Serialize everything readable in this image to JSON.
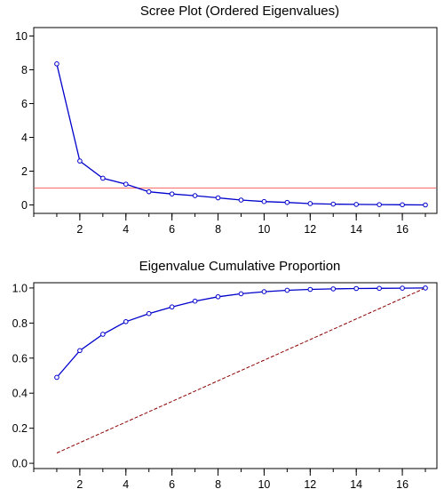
{
  "chart_data": [
    {
      "type": "line",
      "title": "Scree Plot (Ordered Eigenvalues)",
      "xlabel": "",
      "ylabel": "",
      "xlim": [
        0,
        17.5
      ],
      "ylim": [
        -0.5,
        10.5
      ],
      "x_ticks": [
        2,
        4,
        6,
        8,
        10,
        12,
        14,
        16
      ],
      "y_ticks": [
        0,
        2,
        4,
        6,
        8,
        10
      ],
      "y_tick_labels": [
        "0",
        "2",
        "4",
        "6",
        "8",
        "10"
      ],
      "x": [
        1,
        2,
        3,
        4,
        5,
        6,
        7,
        8,
        9,
        10,
        11,
        12,
        13,
        14,
        15,
        16,
        17
      ],
      "series": [
        {
          "values": [
            8.35,
            2.6,
            1.58,
            1.23,
            0.78,
            0.65,
            0.55,
            0.42,
            0.29,
            0.2,
            0.15,
            0.08,
            0.05,
            0.03,
            0.02,
            0.01,
            0.0
          ],
          "color": "#0000cc"
        }
      ],
      "reference_line": {
        "y": 1.0,
        "color": "#ff6b6b",
        "style": "solid"
      },
      "grid": false,
      "legend": "none"
    },
    {
      "type": "line",
      "title": "Eigenvalue Cumulative Proportion",
      "xlabel": "",
      "ylabel": "",
      "xlim": [
        0,
        17.5
      ],
      "ylim": [
        -0.03,
        1.03
      ],
      "x_ticks": [
        2,
        4,
        6,
        8,
        10,
        12,
        14,
        16
      ],
      "y_ticks": [
        0,
        0.2,
        0.4,
        0.6,
        0.8,
        1.0
      ],
      "y_tick_labels": [
        "0.0",
        "0.2",
        "0.4",
        "0.6",
        "0.8",
        "1.0"
      ],
      "x": [
        1,
        2,
        3,
        4,
        5,
        6,
        7,
        8,
        9,
        10,
        11,
        12,
        13,
        14,
        15,
        16,
        17
      ],
      "series": [
        {
          "values": [
            0.49,
            0.643,
            0.736,
            0.808,
            0.854,
            0.892,
            0.925,
            0.95,
            0.967,
            0.979,
            0.987,
            0.992,
            0.995,
            0.997,
            0.998,
            0.999,
            1.0
          ],
          "color": "#0000cc"
        }
      ],
      "reference_line": {
        "from": [
          1,
          0.0588
        ],
        "to": [
          17,
          1.0
        ],
        "color": "#8b0000",
        "style": "dashed"
      },
      "grid": false,
      "legend": "none"
    }
  ]
}
